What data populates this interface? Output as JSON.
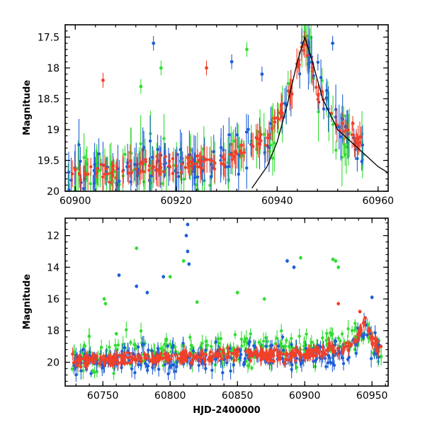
{
  "colors": {
    "green": "#33dd33",
    "blue": "#1f5fd6",
    "red": "#f0402a",
    "model": "#000000"
  },
  "chart_data": [
    {
      "type": "scatter",
      "panel": "top",
      "xlabel": "",
      "ylabel": "Magnitude",
      "xlim": [
        60898,
        60962
      ],
      "ylim": [
        20.0,
        17.3
      ],
      "y_inverted": true,
      "xticks": [
        60900,
        60920,
        60940,
        60960
      ],
      "xtick_labels": [
        "60900",
        "60920",
        "60940",
        "60960"
      ],
      "yticks": [
        17.5,
        18,
        18.5,
        19,
        19.5,
        20
      ],
      "ytick_labels": [
        "17.5",
        "18",
        "18.5",
        "19",
        "19.5",
        "20"
      ],
      "series": [
        {
          "name": "green",
          "color": "green",
          "profile": [
            [
              60898,
              19.8
            ],
            [
              60930,
              19.5
            ],
            [
              60938,
              19.2
            ],
            [
              60943,
              18.4
            ],
            [
              60945.5,
              17.4
            ],
            [
              60948,
              18.3
            ],
            [
              60952,
              19.0
            ],
            [
              60958,
              19.5
            ]
          ],
          "scatter": 0.35,
          "err": 0.35,
          "n": 120
        },
        {
          "name": "blue",
          "color": "blue",
          "profile": [
            [
              60898,
              19.8
            ],
            [
              60930,
              19.5
            ],
            [
              60938,
              19.2
            ],
            [
              60943,
              18.4
            ],
            [
              60945.5,
              17.5
            ],
            [
              60948,
              18.2
            ],
            [
              60952,
              18.9
            ],
            [
              60958,
              19.4
            ]
          ],
          "scatter": 0.3,
          "err": 0.3,
          "n": 130
        },
        {
          "name": "red",
          "color": "red",
          "profile": [
            [
              60898,
              19.75
            ],
            [
              60930,
              19.5
            ],
            [
              60938,
              19.1
            ],
            [
              60943,
              18.3
            ],
            [
              60945.5,
              17.6
            ],
            [
              60948,
              18.4
            ],
            [
              60952,
              18.9
            ],
            [
              60958,
              19.3
            ]
          ],
          "scatter": 0.12,
          "err": 0.2,
          "n": 160
        }
      ],
      "outliers": [
        {
          "x": 60915.5,
          "y": 17.6,
          "color": "blue"
        },
        {
          "x": 60905.5,
          "y": 18.2,
          "color": "red"
        },
        {
          "x": 60913,
          "y": 18.3,
          "color": "green"
        },
        {
          "x": 60917,
          "y": 18.0,
          "color": "green"
        },
        {
          "x": 60926,
          "y": 18.0,
          "color": "red"
        },
        {
          "x": 60931,
          "y": 17.9,
          "color": "blue"
        },
        {
          "x": 60934,
          "y": 17.7,
          "color": "green"
        },
        {
          "x": 60937,
          "y": 18.1,
          "color": "blue"
        },
        {
          "x": 60951,
          "y": 17.6,
          "color": "blue"
        },
        {
          "x": 60955,
          "y": 18.9,
          "color": "red"
        }
      ],
      "model_curve": [
        [
          60935,
          19.95
        ],
        [
          60938,
          19.6
        ],
        [
          60940,
          19.2
        ],
        [
          60942,
          18.6
        ],
        [
          60944,
          17.9
        ],
        [
          60945.5,
          17.5
        ],
        [
          60947,
          17.9
        ],
        [
          60949,
          18.5
        ],
        [
          60952,
          19.0
        ],
        [
          60956,
          19.3
        ],
        [
          60960,
          19.6
        ],
        [
          60962,
          19.7
        ]
      ]
    },
    {
      "type": "scatter",
      "panel": "bottom",
      "xlabel": "HJD-2400000",
      "ylabel": "Magnitude",
      "xlim": [
        60722,
        60962
      ],
      "ylim": [
        21.5,
        10.9
      ],
      "y_inverted": true,
      "xticks": [
        60750,
        60800,
        60850,
        60900,
        60950
      ],
      "xtick_labels": [
        "60750",
        "60800",
        "60850",
        "60900",
        "60950"
      ],
      "yticks": [
        12,
        14,
        16,
        18,
        20
      ],
      "ytick_labels": [
        "12",
        "14",
        "16",
        "18",
        "20"
      ],
      "series": [
        {
          "name": "green",
          "color": "green",
          "profile": [
            [
              60728,
              19.7
            ],
            [
              60800,
              19.4
            ],
            [
              60860,
              19.1
            ],
            [
              60890,
              19.0
            ],
            [
              60935,
              18.8
            ],
            [
              60945,
              17.6
            ],
            [
              60950,
              18.6
            ],
            [
              60958,
              19.4
            ]
          ],
          "scatter": 0.8,
          "err": 0.4,
          "n": 260
        },
        {
          "name": "blue",
          "color": "blue",
          "profile": [
            [
              60728,
              19.9
            ],
            [
              60800,
              19.8
            ],
            [
              60860,
              19.6
            ],
            [
              60890,
              19.7
            ],
            [
              60935,
              19.2
            ],
            [
              60945,
              17.7
            ],
            [
              60950,
              18.6
            ],
            [
              60958,
              19.5
            ]
          ],
          "scatter": 0.7,
          "err": 0.4,
          "n": 300
        },
        {
          "name": "red",
          "color": "red",
          "profile": [
            [
              60728,
              19.9
            ],
            [
              60800,
              19.7
            ],
            [
              60860,
              19.5
            ],
            [
              60890,
              19.6
            ],
            [
              60935,
              19.0
            ],
            [
              60945,
              17.4
            ],
            [
              60950,
              18.5
            ],
            [
              60958,
              19.5
            ]
          ],
          "scatter": 0.3,
          "err": 0.3,
          "n": 420
        }
      ],
      "outliers": [
        {
          "x": 60813,
          "y": 11.3,
          "color": "blue"
        },
        {
          "x": 60812,
          "y": 12.0,
          "color": "blue"
        },
        {
          "x": 60813,
          "y": 13.0,
          "color": "blue"
        },
        {
          "x": 60814,
          "y": 13.8,
          "color": "blue"
        },
        {
          "x": 60775,
          "y": 12.8,
          "color": "green"
        },
        {
          "x": 60810,
          "y": 13.6,
          "color": "green"
        },
        {
          "x": 60762,
          "y": 14.5,
          "color": "blue"
        },
        {
          "x": 60751,
          "y": 16.0,
          "color": "green"
        },
        {
          "x": 60752,
          "y": 16.3,
          "color": "green"
        },
        {
          "x": 60800,
          "y": 14.6,
          "color": "green"
        },
        {
          "x": 60795,
          "y": 14.6,
          "color": "blue"
        },
        {
          "x": 60775,
          "y": 15.2,
          "color": "blue"
        },
        {
          "x": 60783,
          "y": 15.6,
          "color": "blue"
        },
        {
          "x": 60887,
          "y": 13.6,
          "color": "blue"
        },
        {
          "x": 60892,
          "y": 14.0,
          "color": "blue"
        },
        {
          "x": 60897,
          "y": 13.4,
          "color": "green"
        },
        {
          "x": 60921,
          "y": 13.5,
          "color": "green"
        },
        {
          "x": 60923,
          "y": 13.6,
          "color": "green"
        },
        {
          "x": 60925,
          "y": 14.0,
          "color": "green"
        },
        {
          "x": 60950,
          "y": 15.9,
          "color": "blue"
        },
        {
          "x": 60870,
          "y": 16.0,
          "color": "green"
        },
        {
          "x": 60925,
          "y": 16.3,
          "color": "red"
        },
        {
          "x": 60850,
          "y": 15.6,
          "color": "green"
        },
        {
          "x": 60820,
          "y": 16.2,
          "color": "green"
        },
        {
          "x": 60941,
          "y": 16.8,
          "color": "red"
        },
        {
          "x": 60760,
          "y": 18.2,
          "color": "green"
        },
        {
          "x": 60945,
          "y": 17.2,
          "color": "red"
        }
      ],
      "model_curve": []
    }
  ]
}
